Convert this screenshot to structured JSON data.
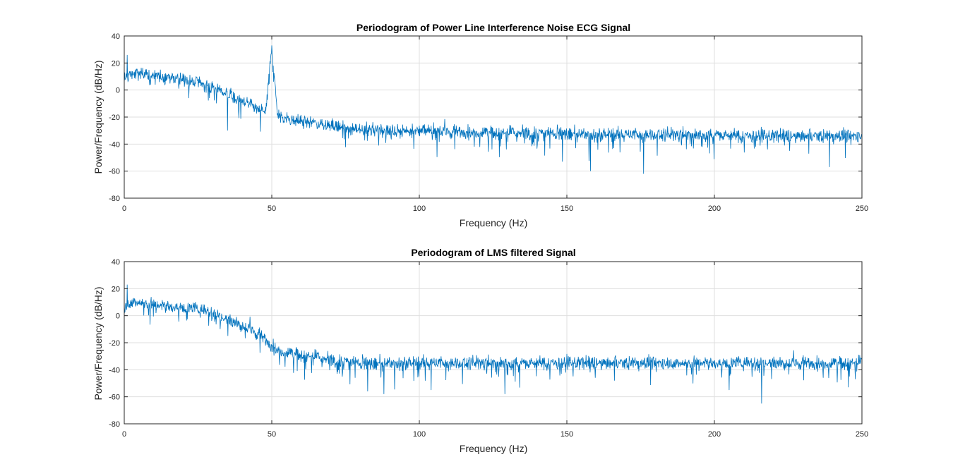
{
  "chart_data": [
    {
      "type": "line",
      "title": "Periodogram of Power Line Interference Noise ECG Signal",
      "xlabel": "Frequency (Hz)",
      "ylabel": "Power/Frequency (dB/Hz)",
      "xlim": [
        0,
        250
      ],
      "ylim": [
        -80,
        40
      ],
      "xticks": [
        0,
        50,
        100,
        150,
        200,
        250
      ],
      "yticks": [
        -80,
        -60,
        -40,
        -20,
        0,
        20,
        40
      ],
      "xtick_labels": [
        "0",
        "50",
        "100",
        "150",
        "200",
        "250"
      ],
      "ytick_labels": [
        "-80",
        "-60",
        "-40",
        "-20",
        "0",
        "20",
        "40"
      ],
      "grid": true,
      "line_color": "#0072BD",
      "series": [
        {
          "x": [
            0,
            2,
            5,
            10,
            15,
            20,
            25,
            30,
            35,
            40,
            45,
            48,
            50,
            52,
            55,
            60,
            65,
            70,
            75,
            80,
            90,
            100,
            110,
            120,
            130,
            140,
            150,
            160,
            170,
            180,
            190,
            200,
            210,
            220,
            230,
            240,
            250
          ],
          "y": [
            8,
            12,
            12,
            10,
            9,
            8,
            6,
            2,
            -3,
            -8,
            -14,
            -16,
            33,
            -20,
            -21,
            -23,
            -24,
            -26,
            -28,
            -29,
            -30,
            -30,
            -31,
            -31,
            -32,
            -32,
            -32,
            -33,
            -33,
            -33,
            -33,
            -33,
            -34,
            -34,
            -34,
            -34,
            -34
          ],
          "spikes": [
            {
              "x": 1,
              "y": 26
            },
            {
              "x": 50,
              "y": 33
            },
            {
              "x": 158,
              "y": -60
            },
            {
              "x": 176,
              "y": -62
            },
            {
              "x": 239,
              "y": -57
            },
            {
              "x": 35,
              "y": -30
            }
          ]
        }
      ]
    },
    {
      "type": "line",
      "title": "Periodogram of LMS filtered Signal",
      "xlabel": "Frequency (Hz)",
      "ylabel": "Power/Frequency (dB/Hz)",
      "xlim": [
        0,
        250
      ],
      "ylim": [
        -80,
        40
      ],
      "xticks": [
        0,
        50,
        100,
        150,
        200,
        250
      ],
      "yticks": [
        -80,
        -60,
        -40,
        -20,
        0,
        20,
        40
      ],
      "xtick_labels": [
        "0",
        "50",
        "100",
        "150",
        "200",
        "250"
      ],
      "ytick_labels": [
        "-80",
        "-60",
        "-40",
        "-20",
        "0",
        "20",
        "40"
      ],
      "grid": true,
      "line_color": "#0072BD",
      "series": [
        {
          "x": [
            0,
            2,
            5,
            10,
            15,
            20,
            25,
            30,
            35,
            40,
            45,
            48,
            50,
            52,
            55,
            60,
            65,
            70,
            75,
            80,
            90,
            100,
            110,
            120,
            130,
            140,
            150,
            160,
            170,
            180,
            190,
            200,
            210,
            220,
            230,
            240,
            250
          ],
          "y": [
            6,
            10,
            10,
            8,
            7,
            6,
            5,
            2,
            -3,
            -7,
            -13,
            -18,
            -22,
            -25,
            -27,
            -29,
            -31,
            -33,
            -34,
            -35,
            -35,
            -35,
            -35,
            -35,
            -35,
            -35,
            -35,
            -35,
            -35,
            -35,
            -35,
            -35,
            -35,
            -35,
            -35,
            -35,
            -35
          ],
          "spikes": [
            {
              "x": 1,
              "y": 23
            },
            {
              "x": 88,
              "y": -58
            },
            {
              "x": 129,
              "y": -58
            },
            {
              "x": 216,
              "y": -65
            },
            {
              "x": 205,
              "y": -55
            },
            {
              "x": 104,
              "y": -55
            }
          ]
        }
      ]
    }
  ]
}
